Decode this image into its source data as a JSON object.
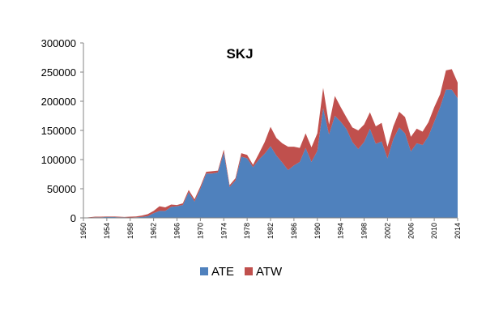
{
  "chart_data": {
    "type": "area",
    "stacked": true,
    "title": "SKJ",
    "xlabel": "",
    "ylabel": "",
    "ylim": [
      0,
      300000
    ],
    "yticks": [
      "0",
      "50000",
      "100000",
      "150000",
      "200000",
      "250000",
      "300000"
    ],
    "xlim": [
      1950,
      2014
    ],
    "xticks": [
      1950,
      1954,
      1958,
      1962,
      1966,
      1970,
      1974,
      1978,
      1982,
      1986,
      1990,
      1994,
      1998,
      2002,
      2006,
      2010,
      2014
    ],
    "grid": false,
    "legend": "bottom",
    "x": [
      1950,
      1951,
      1952,
      1953,
      1954,
      1955,
      1956,
      1957,
      1958,
      1959,
      1960,
      1961,
      1962,
      1963,
      1964,
      1965,
      1966,
      1967,
      1968,
      1969,
      1970,
      1971,
      1972,
      1973,
      1974,
      1975,
      1976,
      1977,
      1978,
      1979,
      1980,
      1981,
      1982,
      1983,
      1984,
      1985,
      1986,
      1987,
      1988,
      1989,
      1990,
      1991,
      1992,
      1993,
      1994,
      1995,
      1996,
      1997,
      1998,
      1999,
      2000,
      2001,
      2002,
      2003,
      2004,
      2005,
      2006,
      2007,
      2008,
      2009,
      2010,
      2011,
      2012,
      2013,
      2014
    ],
    "series": [
      {
        "name": "ATE",
        "color": "#4F81BD",
        "values": [
          0,
          500,
          1000,
          1000,
          1500,
          1500,
          1000,
          1000,
          500,
          1000,
          1500,
          3000,
          8000,
          12000,
          12000,
          19000,
          20000,
          22000,
          44000,
          28000,
          50000,
          76000,
          76000,
          78000,
          112000,
          53000,
          64000,
          105000,
          102000,
          87000,
          100000,
          110000,
          123000,
          107000,
          95000,
          82000,
          90000,
          96000,
          120000,
          96000,
          115000,
          188000,
          143000,
          175000,
          165000,
          152000,
          130000,
          118000,
          130000,
          153000,
          127000,
          131000,
          102000,
          135000,
          155000,
          145000,
          114000,
          128000,
          125000,
          140000,
          165000,
          190000,
          220000,
          220000,
          205000
        ]
      },
      {
        "name": "ATW",
        "color": "#C0504D",
        "values": [
          0,
          500,
          1000,
          1000,
          1000,
          1000,
          1000,
          500,
          1500,
          1500,
          2500,
          3500,
          4000,
          8000,
          6000,
          4000,
          2000,
          3000,
          4000,
          4000,
          4000,
          3000,
          4000,
          3000,
          5000,
          3000,
          4000,
          6000,
          6000,
          4000,
          10000,
          20000,
          33000,
          30000,
          33000,
          40000,
          32000,
          24000,
          25000,
          25000,
          30000,
          35000,
          17000,
          34000,
          25000,
          20000,
          25000,
          32000,
          30000,
          28000,
          30000,
          32000,
          20000,
          22000,
          27000,
          28000,
          25000,
          25000,
          23000,
          24000,
          25000,
          22000,
          33000,
          35000,
          27000
        ]
      }
    ]
  }
}
